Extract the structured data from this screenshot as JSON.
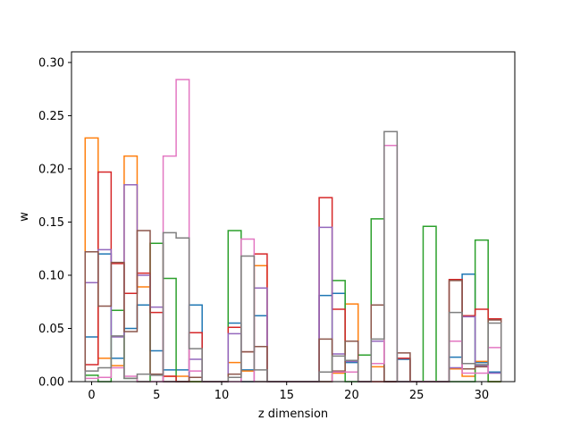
{
  "chart_data": {
    "type": "bar",
    "title": "",
    "xlabel": "z dimension",
    "ylabel": "w",
    "xlim": [
      -1.55,
      32.55
    ],
    "ylim": [
      0,
      0.31
    ],
    "xticks": [
      0,
      5,
      10,
      15,
      20,
      25,
      30
    ],
    "yticks": [
      0.0,
      0.05,
      0.1,
      0.15,
      0.2,
      0.25,
      0.3
    ],
    "ytick_labels": [
      "0.00",
      "0.05",
      "0.10",
      "0.15",
      "0.20",
      "0.25",
      "0.30"
    ],
    "style": "step histogram, unfilled outlines, one series per color, x centers 0..31 with unit-width bins",
    "grid": false,
    "legend": "none",
    "categories": [
      0,
      1,
      2,
      3,
      4,
      5,
      6,
      7,
      8,
      9,
      10,
      11,
      12,
      13,
      14,
      15,
      16,
      17,
      18,
      19,
      20,
      21,
      22,
      23,
      24,
      25,
      26,
      27,
      28,
      29,
      30,
      31
    ],
    "series": [
      {
        "color": "#1f77b4",
        "values": [
          0.042,
          0.12,
          0.022,
          0.05,
          0.072,
          0.029,
          0.011,
          0.011,
          0.072,
          0.0,
          0.0,
          0.055,
          0.011,
          0.062,
          0.0,
          0.0,
          0.0,
          0.0,
          0.081,
          0.083,
          0.018,
          0.0,
          0.038,
          0.0,
          0.021,
          0.0,
          0.0,
          0.0,
          0.023,
          0.101,
          0.018,
          0.009
        ]
      },
      {
        "color": "#ff7f0e",
        "values": [
          0.229,
          0.022,
          0.015,
          0.212,
          0.089,
          0.13,
          0.005,
          0.005,
          0.0,
          0.0,
          0.0,
          0.018,
          0.01,
          0.109,
          0.0,
          0.0,
          0.0,
          0.0,
          0.0,
          0.008,
          0.073,
          0.0,
          0.014,
          0.0,
          0.0,
          0.0,
          0.0,
          0.0,
          0.012,
          0.005,
          0.019,
          0.0
        ]
      },
      {
        "color": "#2ca02c",
        "values": [
          0.006,
          0.0,
          0.067,
          0.003,
          0.0,
          0.13,
          0.097,
          0.0,
          0.0,
          0.0,
          0.0,
          0.142,
          0.0,
          0.0,
          0.0,
          0.0,
          0.0,
          0.0,
          0.0,
          0.095,
          0.0,
          0.025,
          0.153,
          0.0,
          0.0,
          0.0,
          0.146,
          0.0,
          0.0,
          0.0,
          0.133,
          0.0
        ]
      },
      {
        "color": "#d62728",
        "values": [
          0.016,
          0.197,
          0.111,
          0.083,
          0.102,
          0.065,
          0.005,
          0.0,
          0.046,
          0.0,
          0.0,
          0.051,
          0.028,
          0.12,
          0.0,
          0.0,
          0.0,
          0.0,
          0.173,
          0.068,
          0.038,
          0.0,
          0.0,
          0.0,
          0.022,
          0.0,
          0.0,
          0.0,
          0.096,
          0.062,
          0.068,
          0.059
        ]
      },
      {
        "color": "#9467bd",
        "values": [
          0.093,
          0.124,
          0.042,
          0.185,
          0.1,
          0.07,
          0.0,
          0.0,
          0.021,
          0.0,
          0.0,
          0.045,
          0.0,
          0.088,
          0.0,
          0.0,
          0.0,
          0.0,
          0.145,
          0.026,
          0.019,
          0.0,
          0.038,
          0.0,
          0.0,
          0.0,
          0.0,
          0.0,
          0.013,
          0.061,
          0.015,
          0.008
        ]
      },
      {
        "color": "#8c564b",
        "values": [
          0.122,
          0.071,
          0.112,
          0.047,
          0.142,
          0.007,
          0.0,
          0.0,
          0.004,
          0.0,
          0.0,
          0.007,
          0.028,
          0.033,
          0.0,
          0.0,
          0.0,
          0.0,
          0.04,
          0.01,
          0.038,
          0.0,
          0.072,
          0.0,
          0.027,
          0.0,
          0.0,
          0.0,
          0.095,
          0.012,
          0.014,
          0.058
        ]
      },
      {
        "color": "#e377c2",
        "values": [
          0.003,
          0.004,
          0.013,
          0.005,
          0.0,
          0.0,
          0.212,
          0.284,
          0.01,
          0.0,
          0.0,
          0.0,
          0.134,
          0.0,
          0.0,
          0.0,
          0.0,
          0.0,
          0.0,
          0.009,
          0.009,
          0.0,
          0.017,
          0.222,
          0.0,
          0.0,
          0.0,
          0.0,
          0.038,
          0.008,
          0.008,
          0.032
        ]
      },
      {
        "color": "#7f7f7f",
        "values": [
          0.01,
          0.013,
          0.043,
          0.003,
          0.007,
          0.006,
          0.14,
          0.135,
          0.031,
          0.0,
          0.0,
          0.004,
          0.118,
          0.011,
          0.0,
          0.0,
          0.0,
          0.0,
          0.009,
          0.024,
          0.02,
          0.0,
          0.04,
          0.235,
          0.0,
          0.0,
          0.0,
          0.0,
          0.065,
          0.017,
          0.016,
          0.055
        ]
      }
    ]
  }
}
